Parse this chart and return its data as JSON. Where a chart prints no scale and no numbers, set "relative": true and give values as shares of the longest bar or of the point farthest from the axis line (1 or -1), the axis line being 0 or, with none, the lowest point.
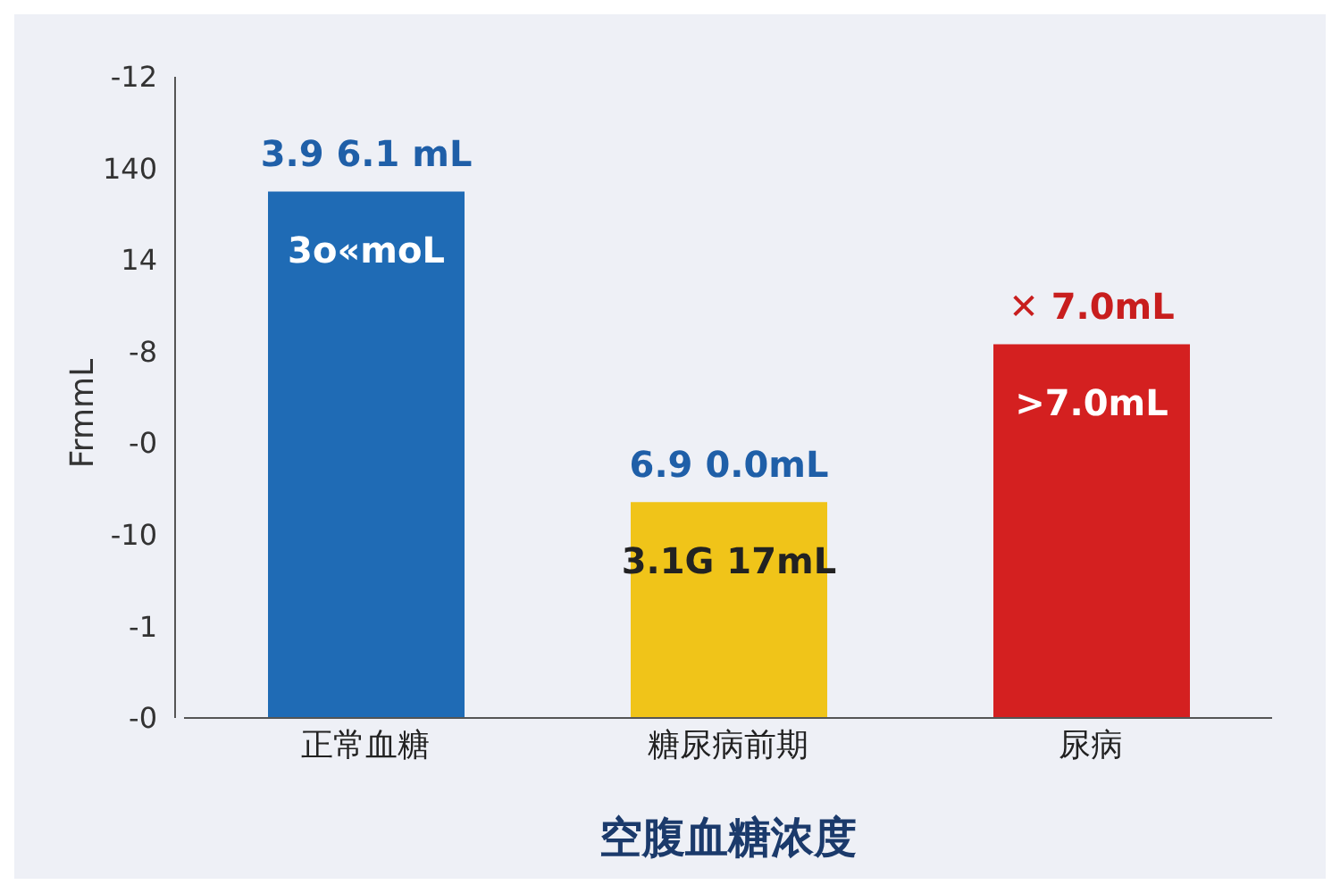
{
  "chart_data": {
    "type": "bar",
    "xlabel": "空腹血糖浓度",
    "ylabel": "FrmmL",
    "relative": true,
    "categories": [
      "正常血糖",
      "糖尿病前期",
      "尿病"
    ],
    "values": [
      1,
      0.41,
      0.71
    ],
    "colors": [
      "#1f6bb5",
      "#f0c419",
      "#d42020"
    ],
    "annotations": [
      "3.9 6.1 mL",
      "3o«moL",
      "6.9 0.0mL",
      "3.1G 17mL",
      "✕ 7.0mL",
      ">7.0mL",
      "-12",
      "140",
      "14",
      "-8",
      "-0",
      "-10",
      "-1",
      "-0"
    ],
    "grid": false,
    "legend": false
  }
}
